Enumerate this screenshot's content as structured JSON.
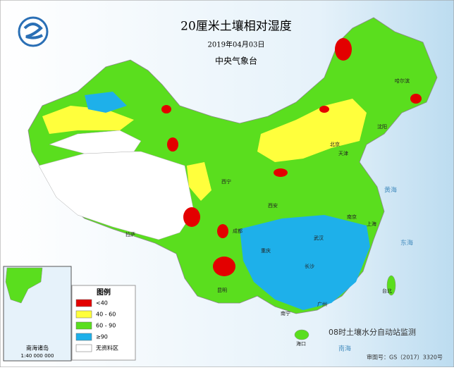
{
  "header": {
    "title": "20厘米土壤相对湿度",
    "date": "2019年04月03日",
    "issuer": "中央气象台"
  },
  "legend": {
    "title": "图例",
    "items": [
      {
        "label": "<40",
        "color": "#e30000"
      },
      {
        "label": "40 - 60",
        "color": "#ffff3c"
      },
      {
        "label": "60 - 90",
        "color": "#5ade1e"
      },
      {
        "label": "≥90",
        "color": "#1eb0ea"
      },
      {
        "label": "无资料区",
        "color": "#ffffff"
      }
    ]
  },
  "note": "08时土壤水分自动站监测",
  "approval": "审图号：GS（2017）3320号",
  "inset": {
    "label": "南海诸岛",
    "scale": "1:40 000 000"
  },
  "places": [
    "北京",
    "天津",
    "上海",
    "南京",
    "武汉",
    "广州",
    "西安",
    "成都",
    "重庆",
    "拉萨",
    "昆明",
    "南宁",
    "长沙",
    "哈尔滨",
    "沈阳",
    "西宁",
    "台北",
    "海口",
    "东海",
    "黄海",
    "南海"
  ]
}
